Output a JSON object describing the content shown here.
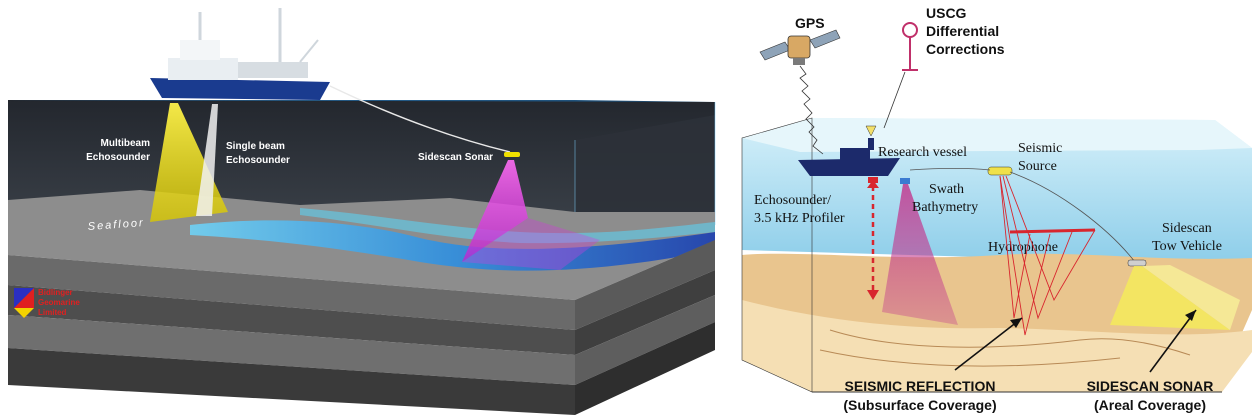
{
  "left_panel": {
    "labels": {
      "multibeam_line1": "Multibeam",
      "multibeam_line2": "Echosounder",
      "singlebeam_line1": "Single beam",
      "singlebeam_line2": "Echosounder",
      "sidescan": "Sidescan Sonar",
      "seafloor": "Seafloor"
    },
    "logo": {
      "line1": "Bidlinger",
      "line2": "Geomarine",
      "line3": "Limited"
    },
    "colors": {
      "sky": "#ffffff",
      "sea_surface": "#1e4f7a",
      "water_column": "#2b2f36",
      "multibeam": "#f2e600",
      "singlebeam": "#e8e8e8",
      "sidescan": "#e04be8",
      "seafloor_blue": "#2fa8e6",
      "sediment_dark": "#3a3a3a",
      "sediment_light": "#8a8a8a"
    }
  },
  "right_panel": {
    "labels": {
      "gps": "GPS",
      "uscg_line1": "USCG",
      "uscg_line2": "Differential",
      "uscg_line3": "Corrections",
      "research_vessel": "Research vessel",
      "seismic_source_line1": "Seismic",
      "seismic_source_line2": "Source",
      "swath_line1": "Swath",
      "swath_line2": "Bathymetry",
      "echosounder_line1": "Echosounder/",
      "echosounder_line2": "3.5 kHz Profiler",
      "hydrophone": "Hydrophone",
      "sidescan_tow_line1": "Sidescan",
      "sidescan_tow_line2": "Tow Vehicle",
      "seismic_reflection_line1": "SEISMIC REFLECTION",
      "seismic_reflection_line2": "(Subsurface Coverage)",
      "sidescan_sonar_line1": "SIDESCAN SONAR",
      "sidescan_sonar_line2": "(Areal Coverage)"
    },
    "colors": {
      "water": "#9fd6ee",
      "surface": "#c9ecf7",
      "seabed": "#e8c48c",
      "subsurface": "#f3dcae",
      "vessel": "#1c2a6b",
      "swath": "#b0287a",
      "seismic_ray": "#d8262e",
      "sidescan_fan": "#f5ea5a"
    }
  }
}
